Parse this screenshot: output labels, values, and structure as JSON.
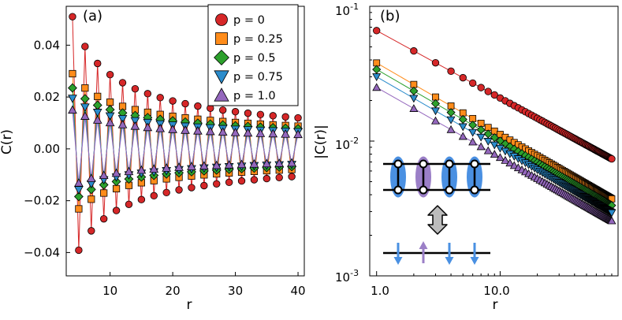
{
  "figure": {
    "panel_a_label": "(a)",
    "panel_b_label": "(b)"
  },
  "legend": {
    "entries": [
      {
        "label": "p = 0",
        "marker": "circle",
        "color": "#d62728"
      },
      {
        "label": "p = 0.25",
        "marker": "square",
        "color": "#ff8c1a"
      },
      {
        "label": "p = 0.5",
        "marker": "diamond",
        "color": "#2ca02c"
      },
      {
        "label": "p = 0.75",
        "marker": "triangle-down",
        "color": "#2b8ccc"
      },
      {
        "label": "p = 1.0",
        "marker": "triangle-up",
        "color": "#9467bd"
      }
    ]
  },
  "chart_data": [
    {
      "id": "a",
      "type": "line",
      "title": "(a)",
      "xlabel": "r",
      "ylabel": "C(r)",
      "xlim": [
        3,
        41
      ],
      "ylim": [
        -0.049,
        0.055
      ],
      "xticks": [
        10,
        20,
        30,
        40
      ],
      "xtick_labels": [
        "10",
        "20",
        "30",
        "40"
      ],
      "yticks": [
        -0.04,
        -0.02,
        0.0,
        0.02,
        0.04
      ],
      "ytick_labels": [
        "−0.04",
        "−0.02",
        "0.00",
        "0.02",
        "0.04"
      ],
      "grid": false,
      "model": "C(r) = (-1)^r · amplitude · (4/r)^exponent, r = 4 … 40",
      "series": [
        {
          "name": "p = 0",
          "color": "#d62728",
          "marker": "circle",
          "amplitude_even": 0.051,
          "amplitude_odd": 0.045,
          "exponent": 0.63
        },
        {
          "name": "p = 0.25",
          "color": "#ff8c1a",
          "marker": "square",
          "amplitude_even": 0.029,
          "amplitude_odd": 0.026,
          "exponent": 0.52
        },
        {
          "name": "p = 0.5",
          "color": "#2ca02c",
          "marker": "diamond",
          "amplitude_even": 0.0235,
          "amplitude_odd": 0.0205,
          "exponent": 0.48
        },
        {
          "name": "p = 0.75",
          "color": "#2b8ccc",
          "marker": "triangle-down",
          "amplitude_even": 0.0195,
          "amplitude_odd": 0.0175,
          "exponent": 0.47
        },
        {
          "name": "p = 1.0",
          "color": "#9467bd",
          "marker": "triangle-up",
          "amplitude_even": 0.015,
          "amplitude_odd": 0.0145,
          "exponent": 0.43
        }
      ]
    },
    {
      "id": "b",
      "type": "line",
      "title": "(b)",
      "xlabel": "r",
      "ylabel": "|C(r)|",
      "xscale": "log",
      "yscale": "log",
      "xlim": [
        0.88,
        90
      ],
      "ylim": [
        0.001,
        0.1
      ],
      "xtick_labels": [
        "1.0",
        "10.0"
      ],
      "ytick_labels": [
        {
          "base": "10",
          "exp": "-1"
        },
        {
          "base": "10",
          "exp": "-2"
        },
        {
          "base": "10",
          "exp": "-3"
        }
      ],
      "grid": false,
      "model": "|C(r)| = amplitude · r^(-exponent), r = 1 … 80",
      "series": [
        {
          "name": "p = 0",
          "color": "#d62728",
          "marker": "circle",
          "amplitude": 0.066,
          "exponent": 0.5
        },
        {
          "name": "p = 0.25",
          "color": "#ff8c1a",
          "marker": "square",
          "amplitude": 0.038,
          "exponent": 0.53
        },
        {
          "name": "p = 0.5",
          "color": "#2ca02c",
          "marker": "diamond",
          "amplitude": 0.034,
          "exponent": 0.53
        },
        {
          "name": "p = 0.75",
          "color": "#2b8ccc",
          "marker": "triangle-down",
          "amplitude": 0.03,
          "exponent": 0.53
        },
        {
          "name": "p = 1.0",
          "color": "#9467bd",
          "marker": "triangle-up",
          "amplitude": 0.025,
          "exponent": 0.52
        }
      ]
    }
  ],
  "inset": {
    "top_ladder": {
      "rungs": 4,
      "ovals": [
        "#4a90e2",
        "#9b7fc7",
        "#4a90e2",
        "#4a90e2"
      ]
    },
    "bottom_chain": {
      "spins": [
        {
          "direction": "down",
          "color": "#4a90e2"
        },
        {
          "direction": "up",
          "color": "#9b7fc7"
        },
        {
          "direction": "down",
          "color": "#4a90e2"
        },
        {
          "direction": "down",
          "color": "#4a90e2"
        }
      ]
    }
  }
}
